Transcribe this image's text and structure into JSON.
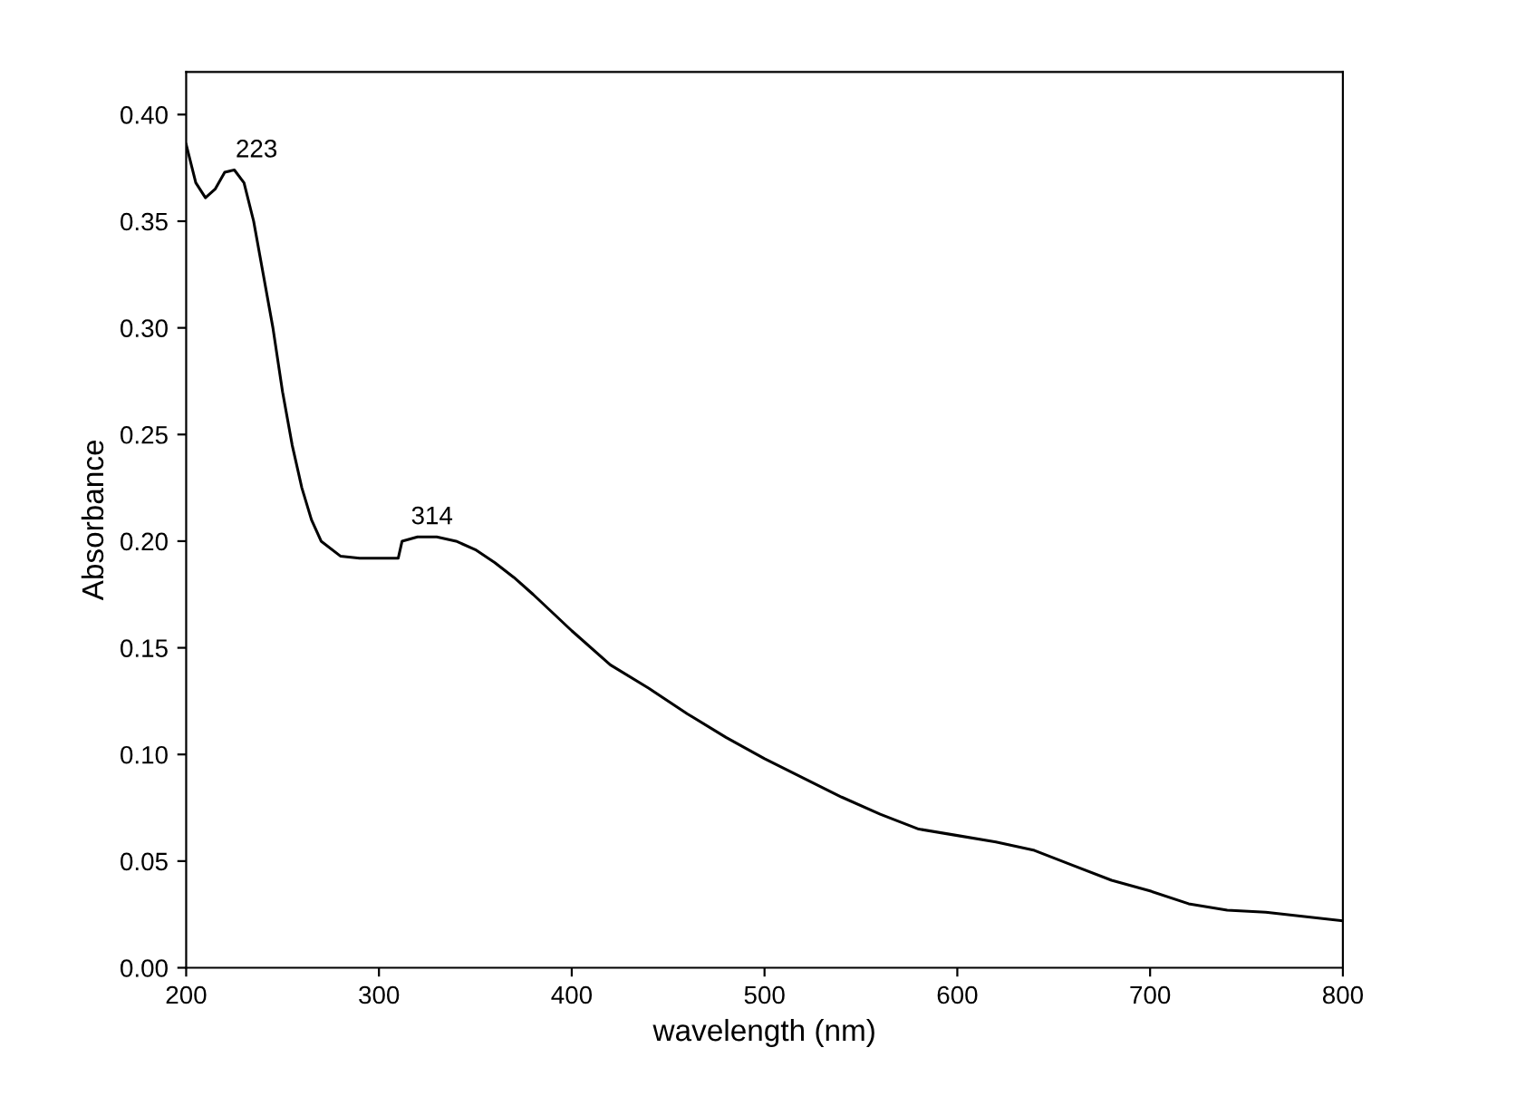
{
  "chart_data": {
    "type": "line",
    "xlabel": "wavelength (nm)",
    "ylabel": "Absorbance",
    "x": [
      200,
      205,
      210,
      215,
      220,
      225,
      230,
      235,
      240,
      245,
      250,
      255,
      260,
      265,
      270,
      280,
      290,
      300,
      310,
      312,
      320,
      330,
      340,
      350,
      360,
      370,
      380,
      400,
      420,
      440,
      460,
      480,
      500,
      520,
      540,
      560,
      580,
      600,
      620,
      640,
      660,
      680,
      700,
      720,
      740,
      760,
      780,
      800
    ],
    "series": [
      {
        "color": "#000000",
        "values": [
          0.386,
          0.368,
          0.361,
          0.365,
          0.373,
          0.374,
          0.368,
          0.35,
          0.325,
          0.3,
          0.27,
          0.245,
          0.225,
          0.21,
          0.2,
          0.193,
          0.192,
          0.192,
          0.192,
          0.2,
          0.202,
          0.202,
          0.2,
          0.196,
          0.19,
          0.183,
          0.175,
          0.158,
          0.142,
          0.131,
          0.119,
          0.108,
          0.098,
          0.089,
          0.08,
          0.072,
          0.065,
          0.062,
          0.059,
          0.055,
          0.048,
          0.041,
          0.036,
          0.03,
          0.027,
          0.026,
          0.024,
          0.022
        ]
      }
    ],
    "annotations": [
      {
        "text": "223",
        "x": 223,
        "y": 0.374
      },
      {
        "text": "314",
        "x": 314,
        "y": 0.202
      }
    ],
    "xlim": [
      200,
      800
    ],
    "xticks": [
      200,
      300,
      400,
      500,
      600,
      700,
      800
    ],
    "ylim": [
      0,
      0.42
    ],
    "yticks": [
      {
        "value": 0,
        "label": "0.00"
      },
      {
        "value": 0.05,
        "label": "0.05"
      },
      {
        "value": 0.1,
        "label": "0.10"
      },
      {
        "value": 0.15,
        "label": "0.15"
      },
      {
        "value": 0.2,
        "label": "0.20"
      },
      {
        "value": 0.25,
        "label": "0.25"
      },
      {
        "value": 0.3,
        "label": "0.30"
      },
      {
        "value": 0.35,
        "label": "0.35"
      },
      {
        "value": 0.4,
        "label": "0.40"
      }
    ],
    "grid": false,
    "legend": false,
    "marker": "none",
    "line_style": "solid"
  }
}
